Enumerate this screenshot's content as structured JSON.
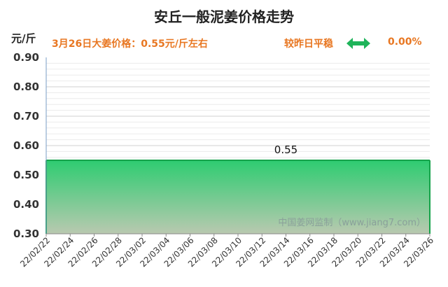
{
  "header": {
    "title": "安丘一般泥姜价格走势",
    "unit": "元/斤",
    "price_text": "3月26日大姜价格：0.55元/斤左右",
    "compare_label": "较昨日平稳",
    "change_pct": "0.00%",
    "arrow_icon": "double-arrow-icon",
    "arrow_color": "#1fb45a"
  },
  "watermark": "中国姜网监制（www.jiang7.com）",
  "chart_data": {
    "type": "area",
    "x": [
      "22/02/22",
      "22/02/24",
      "22/02/26",
      "22/02/28",
      "22/03/02",
      "22/03/04",
      "22/03/06",
      "22/03/08",
      "22/03/10",
      "22/03/12",
      "22/03/14",
      "22/03/16",
      "22/03/18",
      "22/03/20",
      "22/03/22",
      "22/03/24",
      "22/03/26"
    ],
    "values": [
      0.55,
      0.55,
      0.55,
      0.55,
      0.55,
      0.55,
      0.55,
      0.55,
      0.55,
      0.55,
      0.55,
      0.55,
      0.55,
      0.55,
      0.55,
      0.55,
      0.55
    ],
    "yticks": [
      "0.30",
      "0.40",
      "0.50",
      "0.60",
      "0.70",
      "0.80",
      "0.90"
    ],
    "ylim": [
      0.3,
      0.9
    ],
    "data_label": "0.55",
    "data_label_index": 10,
    "fill_top": "#2ecc71",
    "fill_bottom": "#b9c9b0",
    "line_color": "#15a34a",
    "grid": true
  }
}
